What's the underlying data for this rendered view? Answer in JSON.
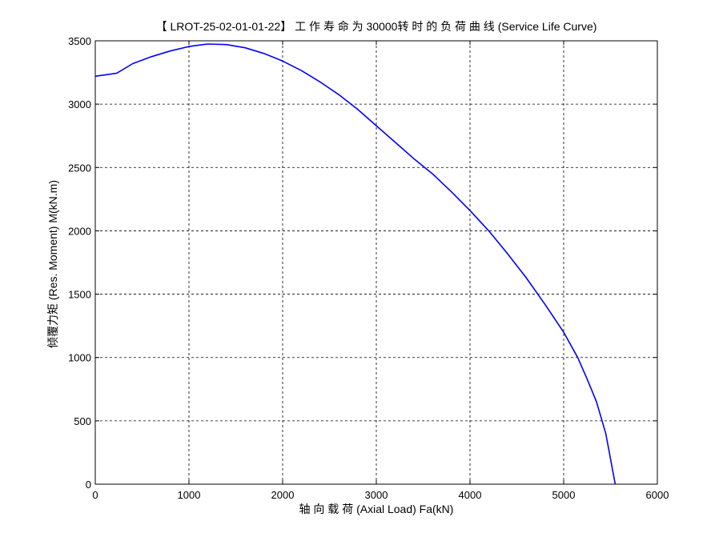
{
  "chart_data": {
    "type": "line",
    "title": "【 LROT-25-02-01-01-22】 工 作 寿 命 为 30000转 时 的 负 荷 曲 线 (Service Life Curve)",
    "xlabel": "轴 向 载 荷 (Axial Load) Fa(kN)",
    "ylabel": "倾覆力矩 (Res. Moment) M(kN.m)",
    "xlim": [
      0,
      6000
    ],
    "ylim": [
      0,
      3500
    ],
    "xticks": [
      0,
      1000,
      2000,
      3000,
      4000,
      5000,
      6000
    ],
    "yticks": [
      0,
      500,
      1000,
      1500,
      2000,
      2500,
      3000,
      3500
    ],
    "grid": true,
    "line_color": "#0000ff",
    "series": [
      {
        "x": [
          0,
          230,
          400,
          600,
          800,
          1000,
          1200,
          1400,
          1600,
          1800,
          2000,
          2200,
          2400,
          2600,
          2800,
          3000,
          3200,
          3400,
          3600,
          3800,
          4000,
          4200,
          4400,
          4600,
          4800,
          5000,
          5150,
          5250,
          5350,
          5450,
          5550
        ],
        "y": [
          3220,
          3245,
          3320,
          3375,
          3420,
          3455,
          3475,
          3470,
          3445,
          3400,
          3340,
          3265,
          3175,
          3075,
          2960,
          2830,
          2700,
          2570,
          2450,
          2310,
          2160,
          2000,
          1820,
          1630,
          1420,
          1200,
          1000,
          830,
          650,
          400,
          0
        ]
      }
    ]
  }
}
